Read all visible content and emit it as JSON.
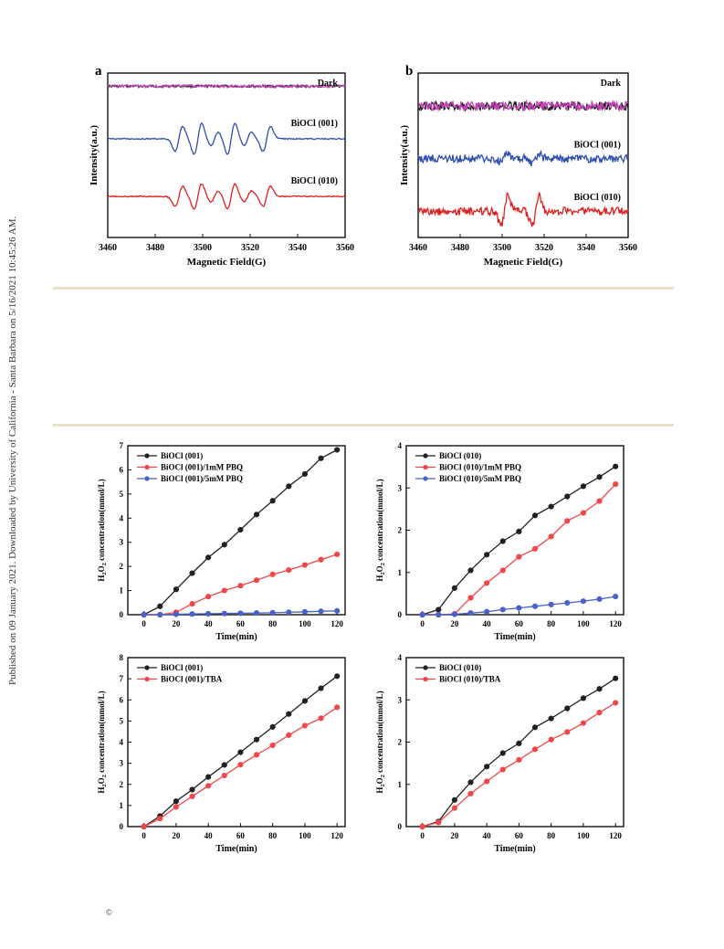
{
  "page": {
    "side_note": "Published on 09 January 2021. Downloaded by University of California - Santa Barbara on 5/16/2021 10:45:26 AM.",
    "copyright": "©"
  },
  "chart_data": [
    {
      "id": "epr-a",
      "type": "line",
      "panel_label": "a",
      "xlabel": "Magnetic Field(G)",
      "ylabel": "Intensity(a.u.)",
      "xlim": [
        3460,
        3560
      ],
      "xticks": [
        3460,
        3480,
        3500,
        3520,
        3540,
        3560
      ],
      "show_y_ticks": false,
      "series": [
        {
          "name": "Dark",
          "color": "#c43fb5",
          "noise_color": "#222222",
          "offset": 92,
          "noise": 1.5,
          "peaks": []
        },
        {
          "name": "BiOCl (001)",
          "color": "#2e4eb0",
          "offset": 60,
          "noise": 0.6,
          "peaks": [
            [
              3490,
              1.0
            ],
            [
              3498,
              1.25
            ],
            [
              3505,
              0.55
            ],
            [
              3512,
              1.25
            ],
            [
              3519,
              0.55
            ],
            [
              3527,
              1.0
            ]
          ]
        },
        {
          "name": "BiOCl (010)",
          "color": "#e02020",
          "offset": 25,
          "noise": 0.6,
          "peaks": [
            [
              3490,
              0.8
            ],
            [
              3498,
              1.0
            ],
            [
              3505,
              0.45
            ],
            [
              3512,
              1.0
            ],
            [
              3519,
              0.45
            ],
            [
              3527,
              0.8
            ]
          ]
        }
      ]
    },
    {
      "id": "epr-b",
      "type": "line",
      "panel_label": "b",
      "xlabel": "Magnetic Field(G)",
      "ylabel": "Intensity(a.u.)",
      "xlim": [
        3460,
        3560
      ],
      "xticks": [
        3460,
        3480,
        3500,
        3520,
        3540,
        3560
      ],
      "show_y_ticks": false,
      "series": [
        {
          "name": "Dark",
          "color": "#c43fb5",
          "noise_color": "#111111",
          "offset": 80,
          "noise": 5,
          "peaks": []
        },
        {
          "name": "BiOCl (001)",
          "color": "#2e4eb0",
          "offset": 48,
          "noise": 4.5,
          "peaks": [
            [
              3501,
              0.35
            ],
            [
              3516,
              0.35
            ]
          ]
        },
        {
          "name": "BiOCl (010)",
          "color": "#e02020",
          "offset": 16,
          "noise": 4.5,
          "peaks": [
            [
              3501,
              1.2
            ],
            [
              3516,
              1.2
            ]
          ]
        }
      ]
    },
    {
      "id": "h2o2-001-pbq",
      "type": "line",
      "xlabel": "Time(min)",
      "ylabel_parts": [
        "H",
        "2",
        "O",
        "2",
        " concentration(mmol/L)"
      ],
      "xlim": [
        -10,
        125
      ],
      "ylim": [
        0,
        7
      ],
      "xticks": [
        0,
        20,
        40,
        60,
        80,
        100,
        120
      ],
      "yticks": [
        0,
        1,
        2,
        3,
        4,
        5,
        6,
        7
      ],
      "x": [
        0,
        10,
        20,
        30,
        40,
        50,
        60,
        70,
        80,
        90,
        100,
        110,
        120
      ],
      "series": [
        {
          "name": "BiOCl (001)",
          "color": "#222222",
          "values": [
            0,
            0.35,
            1.05,
            1.72,
            2.37,
            2.9,
            3.52,
            4.15,
            4.72,
            5.32,
            5.83,
            6.48,
            6.83
          ]
        },
        {
          "name": "BiOCl (001)/1mM PBQ",
          "color": "#f2474a",
          "values": [
            0,
            0,
            0.1,
            0.45,
            0.75,
            1.0,
            1.2,
            1.43,
            1.67,
            1.85,
            2.06,
            2.28,
            2.5
          ]
        },
        {
          "name": "BiOCl (001)/5mM PBQ",
          "color": "#4a62c8",
          "values": [
            0,
            0,
            0.02,
            0.03,
            0.04,
            0.05,
            0.06,
            0.07,
            0.08,
            0.1,
            0.12,
            0.14,
            0.16
          ]
        }
      ]
    },
    {
      "id": "h2o2-010-pbq",
      "type": "line",
      "xlabel": "Time(min)",
      "ylabel_parts": [
        "H",
        "2",
        "O",
        "2",
        " concentration(mmol/L)"
      ],
      "xlim": [
        -10,
        125
      ],
      "ylim": [
        0,
        4
      ],
      "xticks": [
        0,
        20,
        40,
        60,
        80,
        100,
        120
      ],
      "yticks": [
        0,
        1,
        2,
        3,
        4
      ],
      "x": [
        0,
        10,
        20,
        30,
        40,
        50,
        60,
        70,
        80,
        90,
        100,
        110,
        120
      ],
      "series": [
        {
          "name": "BiOCl (010)",
          "color": "#222222",
          "values": [
            0,
            0.12,
            0.63,
            1.05,
            1.42,
            1.74,
            1.97,
            2.35,
            2.56,
            2.8,
            3.04,
            3.26,
            3.51
          ]
        },
        {
          "name": "BiOCl (010)/1mM PBQ",
          "color": "#f2474a",
          "values": [
            0,
            0,
            0.02,
            0.4,
            0.75,
            1.05,
            1.37,
            1.56,
            1.85,
            2.22,
            2.41,
            2.69,
            3.09
          ]
        },
        {
          "name": "BiOCl (010)/5mM PBQ",
          "color": "#4a62c8",
          "values": [
            0,
            0,
            0.01,
            0.04,
            0.07,
            0.12,
            0.16,
            0.2,
            0.24,
            0.28,
            0.32,
            0.37,
            0.43
          ]
        }
      ]
    },
    {
      "id": "h2o2-001-tba",
      "type": "line",
      "xlabel": "Time(min)",
      "ylabel_parts": [
        "H",
        "2",
        "O",
        "2",
        " concentration(mmol/L)"
      ],
      "xlim": [
        -10,
        125
      ],
      "ylim": [
        0,
        8
      ],
      "xticks": [
        0,
        20,
        40,
        60,
        80,
        100,
        120
      ],
      "yticks": [
        0,
        1,
        2,
        3,
        4,
        5,
        6,
        7,
        8
      ],
      "x": [
        0,
        10,
        20,
        30,
        40,
        50,
        60,
        70,
        80,
        90,
        100,
        110,
        120
      ],
      "series": [
        {
          "name": "BiOCl (001)",
          "color": "#222222",
          "values": [
            0,
            0.5,
            1.2,
            1.75,
            2.35,
            2.92,
            3.52,
            4.12,
            4.72,
            5.33,
            5.95,
            6.55,
            7.12
          ]
        },
        {
          "name": "BiOCl (001)/TBA",
          "color": "#f2474a",
          "values": [
            0,
            0.38,
            0.93,
            1.43,
            1.93,
            2.42,
            2.93,
            3.4,
            3.85,
            4.33,
            4.78,
            5.13,
            5.65
          ]
        }
      ]
    },
    {
      "id": "h2o2-010-tba",
      "type": "line",
      "xlabel": "Time(min)",
      "ylabel_parts": [
        "H",
        "2",
        "O",
        "2",
        " concentration(mmol/L)"
      ],
      "xlim": [
        -10,
        125
      ],
      "ylim": [
        0,
        4
      ],
      "xticks": [
        0,
        20,
        40,
        60,
        80,
        100,
        120
      ],
      "yticks": [
        0,
        1,
        2,
        3,
        4
      ],
      "x": [
        0,
        10,
        20,
        30,
        40,
        50,
        60,
        70,
        80,
        90,
        100,
        110,
        120
      ],
      "series": [
        {
          "name": "BiOCl (010)",
          "color": "#222222",
          "values": [
            0,
            0.12,
            0.63,
            1.05,
            1.42,
            1.74,
            1.97,
            2.35,
            2.56,
            2.8,
            3.04,
            3.26,
            3.51
          ]
        },
        {
          "name": "BiOCl (010)/TBA",
          "color": "#f2474a",
          "values": [
            0,
            0.1,
            0.44,
            0.78,
            1.07,
            1.35,
            1.58,
            1.83,
            2.06,
            2.24,
            2.45,
            2.7,
            2.93
          ]
        }
      ]
    }
  ]
}
